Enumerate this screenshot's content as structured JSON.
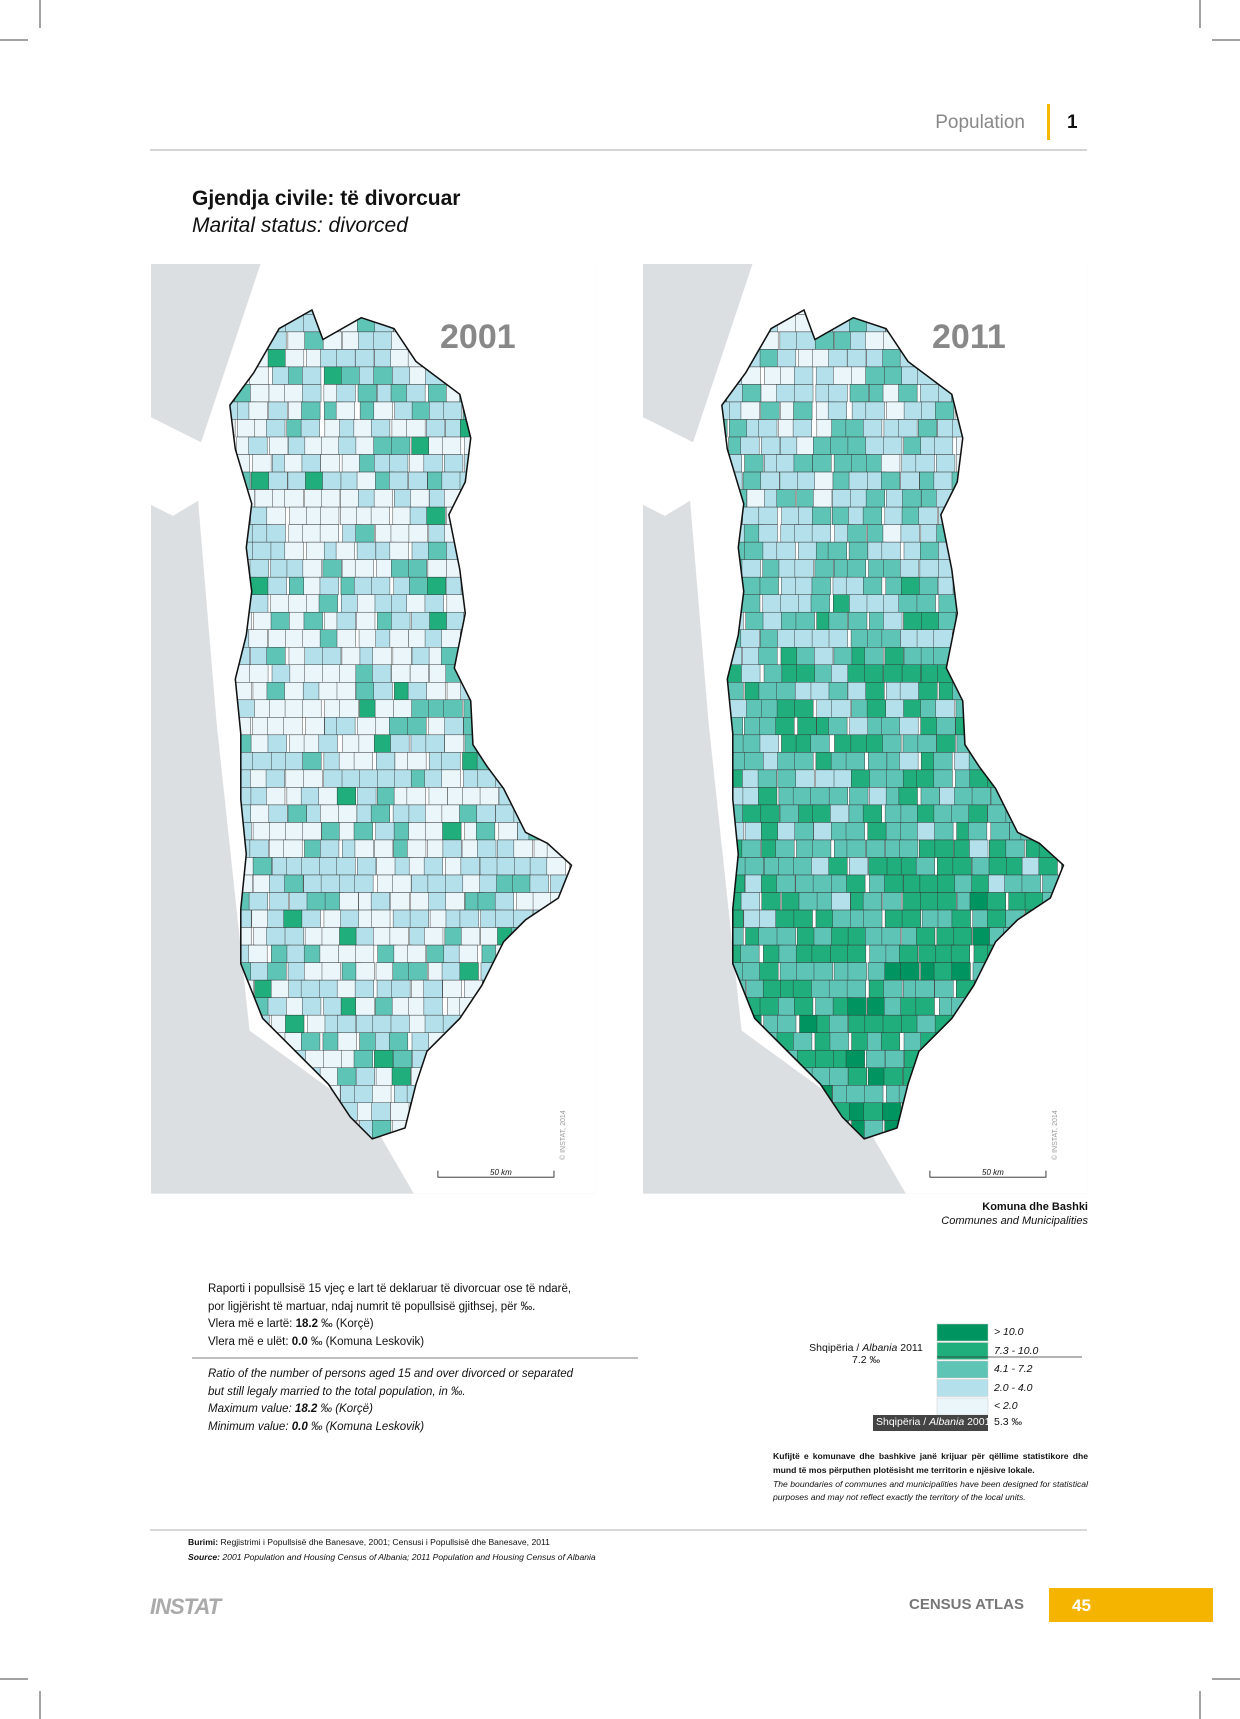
{
  "header": {
    "section": "Population",
    "chapter": "1"
  },
  "title": "Gjendja civile: të divorcuar",
  "subtitle": "Marital status: divorced",
  "maps": [
    {
      "year": "2001",
      "scale": "50 km",
      "credit": "© INSTAT, 2014"
    },
    {
      "year": "2011",
      "scale": "50 km",
      "credit": "© INSTAT, 2014"
    }
  ],
  "map_caption": {
    "title": "Komuna dhe Bashki",
    "subtitle": "Communes and Municipalities"
  },
  "description": {
    "sq": [
      "Raporti i popullsisë 15 vjeç e lart të deklaruar të divorcuar ose të ndarë,",
      "por ligjërisht të martuar, ndaj numrit të popullsisë gjithsej, për ‰."
    ],
    "sq_max": {
      "label": "Vlera më e lartë:",
      "value": "18.2",
      "detail": "‰ (Korçë)"
    },
    "sq_min": {
      "label": "Vlera më e ulët:",
      "value": "0.0",
      "detail": "‰ (Komuna Leskovik)"
    },
    "en": [
      "Ratio of the number of persons aged 15 and over divorced or separated",
      "but still legaly married to the total population, in ‰."
    ],
    "en_max": {
      "label": "Maximum value:",
      "value": "18.2",
      "detail": "‰ (Korçë)"
    },
    "en_min": {
      "label": "Minimum value:",
      "value": "0.0",
      "detail": "‰ (Komuna Leskovik)"
    }
  },
  "legend": {
    "classes": [
      "> 10.0",
      "7.3 - 10.0",
      "4.1 - 7.2",
      "2.0 - 4.0",
      "< 2.0"
    ],
    "colors": [
      "#009560",
      "#1fae7c",
      "#5ec4b6",
      "#b3e0ea",
      "#eaf6fa"
    ],
    "national_2011": {
      "label_sq": "Shqipëria /",
      "label_en": "Albania",
      "year": "2011",
      "value": "7.2 ‰"
    },
    "national_2001": {
      "label_sq": "Shqipëria /",
      "label_en": "Albania",
      "year": "2001",
      "value": "5.3 ‰"
    }
  },
  "note": {
    "sq": "Kufijtë e komunave dhe bashkive janë krijuar për qëllime statistikore dhe mund të mos përputhen plotësisht me territorin e njësive lokale.",
    "en": "The boundaries of communes and municipalities have been designed for statistical purposes and may not reflect exactly the territory of the local units."
  },
  "source": {
    "sq_label": "Burimi:",
    "sq": "Regjistrimi i Popullsisë dhe Banesave, 2001; Censusi i Popullsisë dhe Banesave, 2011",
    "en_label": "Source:",
    "en": "2001 Population and Housing Census of Albania; 2011 Population and Housing Census of Albania"
  },
  "footer": {
    "logo": "INSTAT",
    "atlas": "CENSUS ATLAS",
    "page": "45"
  }
}
